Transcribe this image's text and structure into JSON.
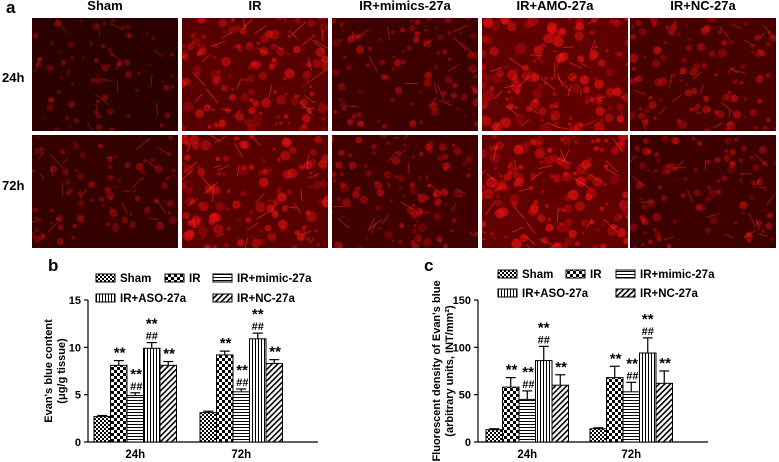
{
  "figure": {
    "panel_a": {
      "letter": "a",
      "columns": [
        "Sham",
        "IR",
        "IR+mimics-27a",
        "IR+AMO-27a",
        "IR+NC-27a"
      ],
      "rows": [
        "24h",
        "72h"
      ],
      "intensity": [
        [
          0.25,
          0.75,
          0.45,
          0.85,
          0.55
        ],
        [
          0.35,
          0.75,
          0.5,
          0.85,
          0.45
        ]
      ],
      "stain_color": "#e01010"
    },
    "panel_b": {
      "letter": "b"
    },
    "panel_c": {
      "letter": "c"
    }
  },
  "chart_data": [
    {
      "type": "bar",
      "ylabel": "Evan's blue content (μg/g tissue)",
      "ylabel_lines": [
        "Evan's blue content",
        "(μg/g tissue)"
      ],
      "categories": [
        "24h",
        "72h"
      ],
      "ylim": [
        0,
        15
      ],
      "yticks": [
        0,
        5,
        10,
        15
      ],
      "legend": {
        "placement": "top",
        "entries": [
          "Sham",
          "IR",
          "IR+mimic-27a",
          "IR+ASO-27a",
          "IR+NC-27a"
        ]
      },
      "series": [
        {
          "name": "Sham",
          "values": [
            2.7,
            3.1
          ],
          "errors": [
            0.1,
            0.15
          ],
          "pattern": "dots"
        },
        {
          "name": "IR",
          "values": [
            8.1,
            9.2
          ],
          "errors": [
            0.5,
            0.4
          ],
          "pattern": "check"
        },
        {
          "name": "IR+mimic-27a",
          "values": [
            4.9,
            5.3
          ],
          "errors": [
            0.3,
            0.3
          ],
          "pattern": "hlines"
        },
        {
          "name": "IR+ASO-27a",
          "values": [
            9.9,
            10.9
          ],
          "errors": [
            0.6,
            0.6
          ],
          "pattern": "vlines"
        },
        {
          "name": "IR+NC-27a",
          "values": [
            8.1,
            8.3
          ],
          "errors": [
            0.4,
            0.4
          ],
          "pattern": "diag"
        }
      ],
      "annotations": [
        [
          "",
          "**",
          "**|##",
          "**|##",
          "**"
        ],
        [
          "",
          "**",
          "**|##",
          "**|##",
          "**"
        ]
      ]
    },
    {
      "type": "bar",
      "ylabel": "Fluorescent density of Evan's blue (arbitrary units, INT/mm²)",
      "ylabel_lines": [
        "Fluorescent density of Evan's blue",
        "(arbitrary units, INT/mm²)"
      ],
      "categories": [
        "24h",
        "72h"
      ],
      "ylim": [
        0,
        150
      ],
      "yticks": [
        0,
        50,
        100,
        150
      ],
      "legend": {
        "placement": "top",
        "entries": [
          "Sham",
          "IR",
          "IR+mimic-27a",
          "IR+ASO-27a",
          "IR+NC-27a"
        ]
      },
      "series": [
        {
          "name": "Sham",
          "values": [
            13,
            14
          ],
          "errors": [
            1,
            1
          ],
          "pattern": "dots"
        },
        {
          "name": "IR",
          "values": [
            58,
            68
          ],
          "errors": [
            10,
            12
          ],
          "pattern": "check"
        },
        {
          "name": "IR+mimic-27a",
          "values": [
            45,
            53
          ],
          "errors": [
            9,
            10
          ],
          "pattern": "hlines"
        },
        {
          "name": "IR+ASO-27a",
          "values": [
            86,
            94
          ],
          "errors": [
            15,
            16
          ],
          "pattern": "vlines"
        },
        {
          "name": "IR+NC-27a",
          "values": [
            60,
            62
          ],
          "errors": [
            11,
            13
          ],
          "pattern": "diag"
        }
      ],
      "annotations": [
        [
          "",
          "**",
          "**|##",
          "**|##",
          "**"
        ],
        [
          "",
          "**",
          "**|##",
          "**|##",
          "**"
        ]
      ]
    }
  ]
}
